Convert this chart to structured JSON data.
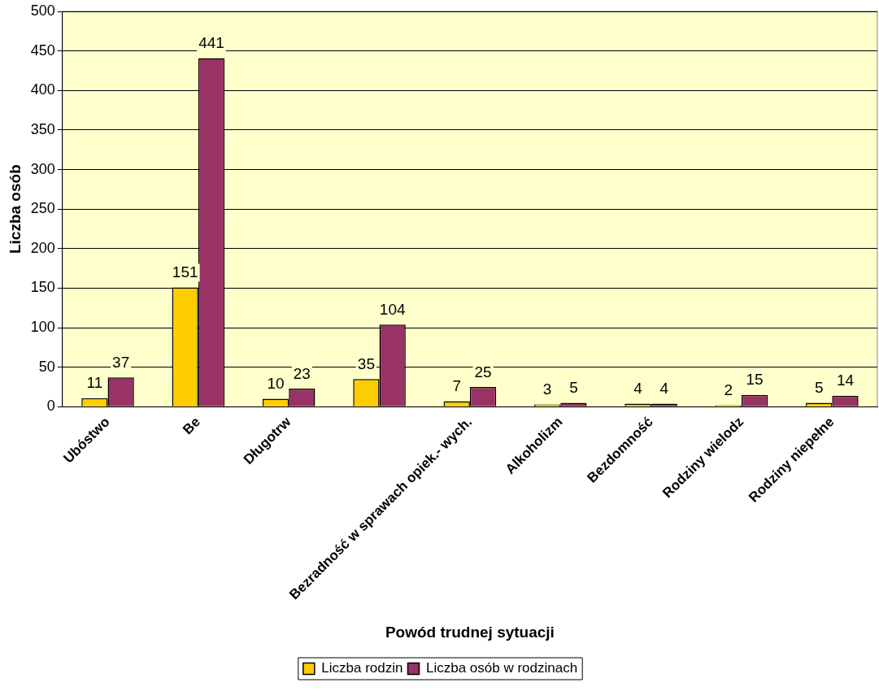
{
  "chart_data": {
    "type": "bar",
    "xlabel": "Powód trudnej sytuacji",
    "ylabel": "Liczba osób",
    "categories": [
      "Ubóstwo",
      "Be",
      "Długotrw",
      null,
      "Bezradność w sprawach opiek.- wych.",
      "Alkoholizm",
      "Bezdomność",
      "Rodziny wielodz",
      "Rodziny niepełne"
    ],
    "series": [
      {
        "name": "Liczba rodzin",
        "color": "#ffcc00",
        "values": [
          11,
          151,
          10,
          35,
          7,
          3,
          4,
          2,
          5
        ]
      },
      {
        "name": "Liczba osób w rodzinach",
        "color": "#993366",
        "values": [
          37,
          441,
          23,
          104,
          25,
          5,
          4,
          15,
          14
        ]
      }
    ],
    "ylim": [
      0,
      500
    ],
    "yticks": [
      0,
      50,
      100,
      150,
      200,
      250,
      300,
      350,
      400,
      450,
      500
    ],
    "grid": "y",
    "legend": "bottom",
    "data_labels": true
  }
}
